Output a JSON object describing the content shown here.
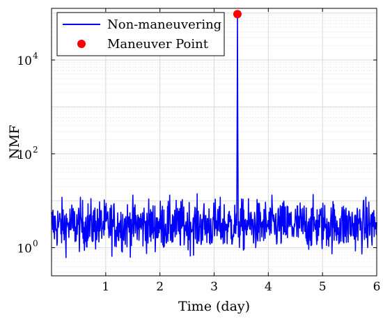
{
  "chart_data": {
    "type": "line",
    "title": "",
    "xlabel": "Time (day)",
    "ylabel": "NMF",
    "xlim": [
      0,
      6
    ],
    "ylim_log10": [
      -0.6,
      5.1
    ],
    "y_scale": "log",
    "grid": true,
    "legend_position": "top-left",
    "x_ticks": [
      1,
      2,
      3,
      4,
      5,
      6
    ],
    "x_tick_labels": [
      "1",
      "2",
      "3",
      "4",
      "5",
      "6"
    ],
    "y_ticks": [
      1,
      100,
      10000
    ],
    "y_tick_labels": [
      {
        "base": "10",
        "exp": "0"
      },
      {
        "base": "10",
        "exp": "2"
      },
      {
        "base": "10",
        "exp": "4"
      }
    ],
    "series": [
      {
        "name": "Non-maneuvering",
        "color": "#0000ff",
        "baseline_nmf": 3,
        "spike": {
          "x": 3.43,
          "y": 95000
        }
      }
    ],
    "markers": [
      {
        "name": "Maneuver Point",
        "color": "#ff0000",
        "x": 3.43,
        "y": 95000
      }
    ]
  }
}
